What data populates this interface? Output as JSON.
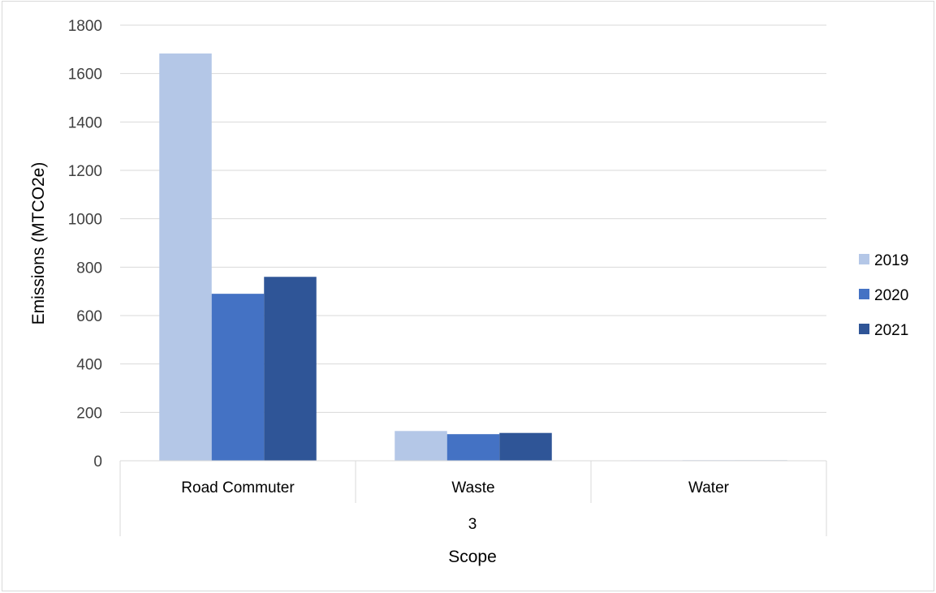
{
  "chart_data": {
    "type": "bar",
    "title": "",
    "ylabel": "Emissions (MTCO2e)",
    "xlabel": "Scope",
    "group_label": "3",
    "categories": [
      "Road Commuter",
      "Waste",
      "Water"
    ],
    "series": [
      {
        "name": "2019",
        "color": "#b4c7e7",
        "values": [
          1683,
          123,
          2
        ]
      },
      {
        "name": "2020",
        "color": "#4472c4",
        "values": [
          690,
          110,
          2
        ]
      },
      {
        "name": "2021",
        "color": "#2f5597",
        "values": [
          760,
          115,
          2
        ]
      }
    ],
    "ylim": [
      0,
      1800
    ],
    "yticks": [
      "0",
      "200",
      "400",
      "600",
      "800",
      "1000",
      "1200",
      "1400",
      "1600",
      "1800"
    ],
    "grid": true,
    "legend_position": "right"
  }
}
